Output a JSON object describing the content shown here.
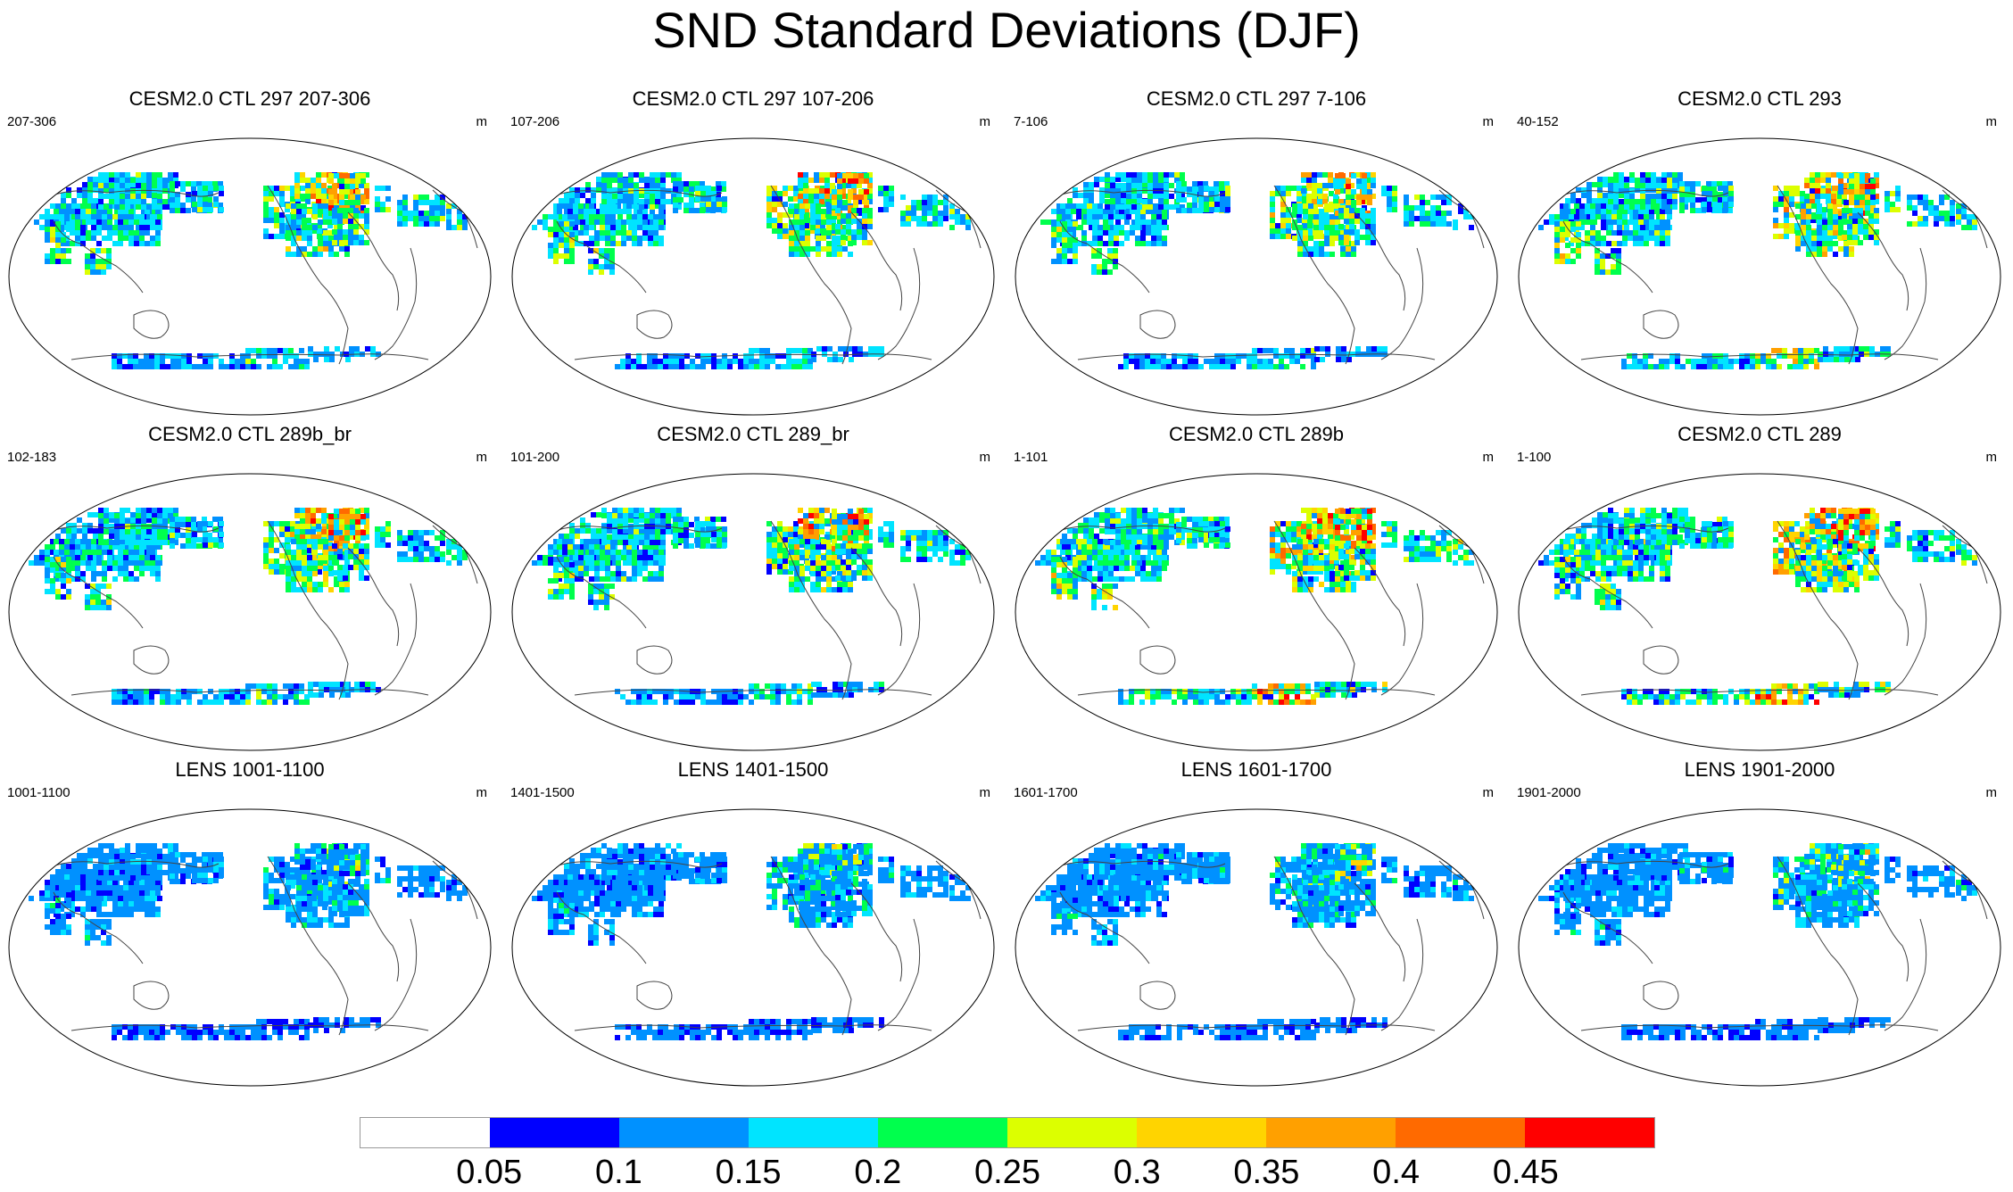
{
  "title": "SND Standard Deviations (DJF)",
  "units": "m",
  "panels": [
    {
      "title": "CESM2.0 CTL 297 207-306",
      "range": "207-306",
      "intensity": 1.0,
      "ant": 0.3,
      "light": false
    },
    {
      "title": "CESM2.0 CTL 297 107-206",
      "range": "107-206",
      "intensity": 1.0,
      "ant": 0.3,
      "light": false
    },
    {
      "title": "CESM2.0 CTL 297 7-106",
      "range": "7-106",
      "intensity": 1.0,
      "ant": 0.35,
      "light": false
    },
    {
      "title": "CESM2.0 CTL 293",
      "range": "40-152",
      "intensity": 1.1,
      "ant": 0.7,
      "light": false
    },
    {
      "title": "CESM2.0 CTL 289b_br",
      "range": "102-183",
      "intensity": 1.0,
      "ant": 0.45,
      "light": false
    },
    {
      "title": "CESM2.0 CTL 289_br",
      "range": "101-200",
      "intensity": 1.0,
      "ant": 0.45,
      "light": false
    },
    {
      "title": "CESM2.0 CTL 289b",
      "range": "1-101",
      "intensity": 1.15,
      "ant": 1.0,
      "light": false
    },
    {
      "title": "CESM2.0 CTL 289",
      "range": "1-100",
      "intensity": 1.15,
      "ant": 1.0,
      "light": false
    },
    {
      "title": "LENS 1001-1100",
      "range": "1001-1100",
      "intensity": 0.65,
      "ant": 0.1,
      "light": true
    },
    {
      "title": "LENS 1401-1500",
      "range": "1401-1500",
      "intensity": 0.65,
      "ant": 0.1,
      "light": true
    },
    {
      "title": "LENS 1601-1700",
      "range": "1601-1700",
      "intensity": 0.7,
      "ant": 0.1,
      "light": true
    },
    {
      "title": "LENS 1901-2000",
      "range": "1901-2000",
      "intensity": 0.7,
      "ant": 0.1,
      "light": true
    }
  ],
  "colorbar": {
    "colors": [
      "#ffffff",
      "#0000ff",
      "#0091ff",
      "#00e4ff",
      "#00ff4d",
      "#dcff00",
      "#ffd400",
      "#ffa000",
      "#ff6a00",
      "#ff0000"
    ],
    "levels": [
      "0.05",
      "0.1",
      "0.15",
      "0.2",
      "0.25",
      "0.3",
      "0.35",
      "0.4",
      "0.45"
    ]
  }
}
